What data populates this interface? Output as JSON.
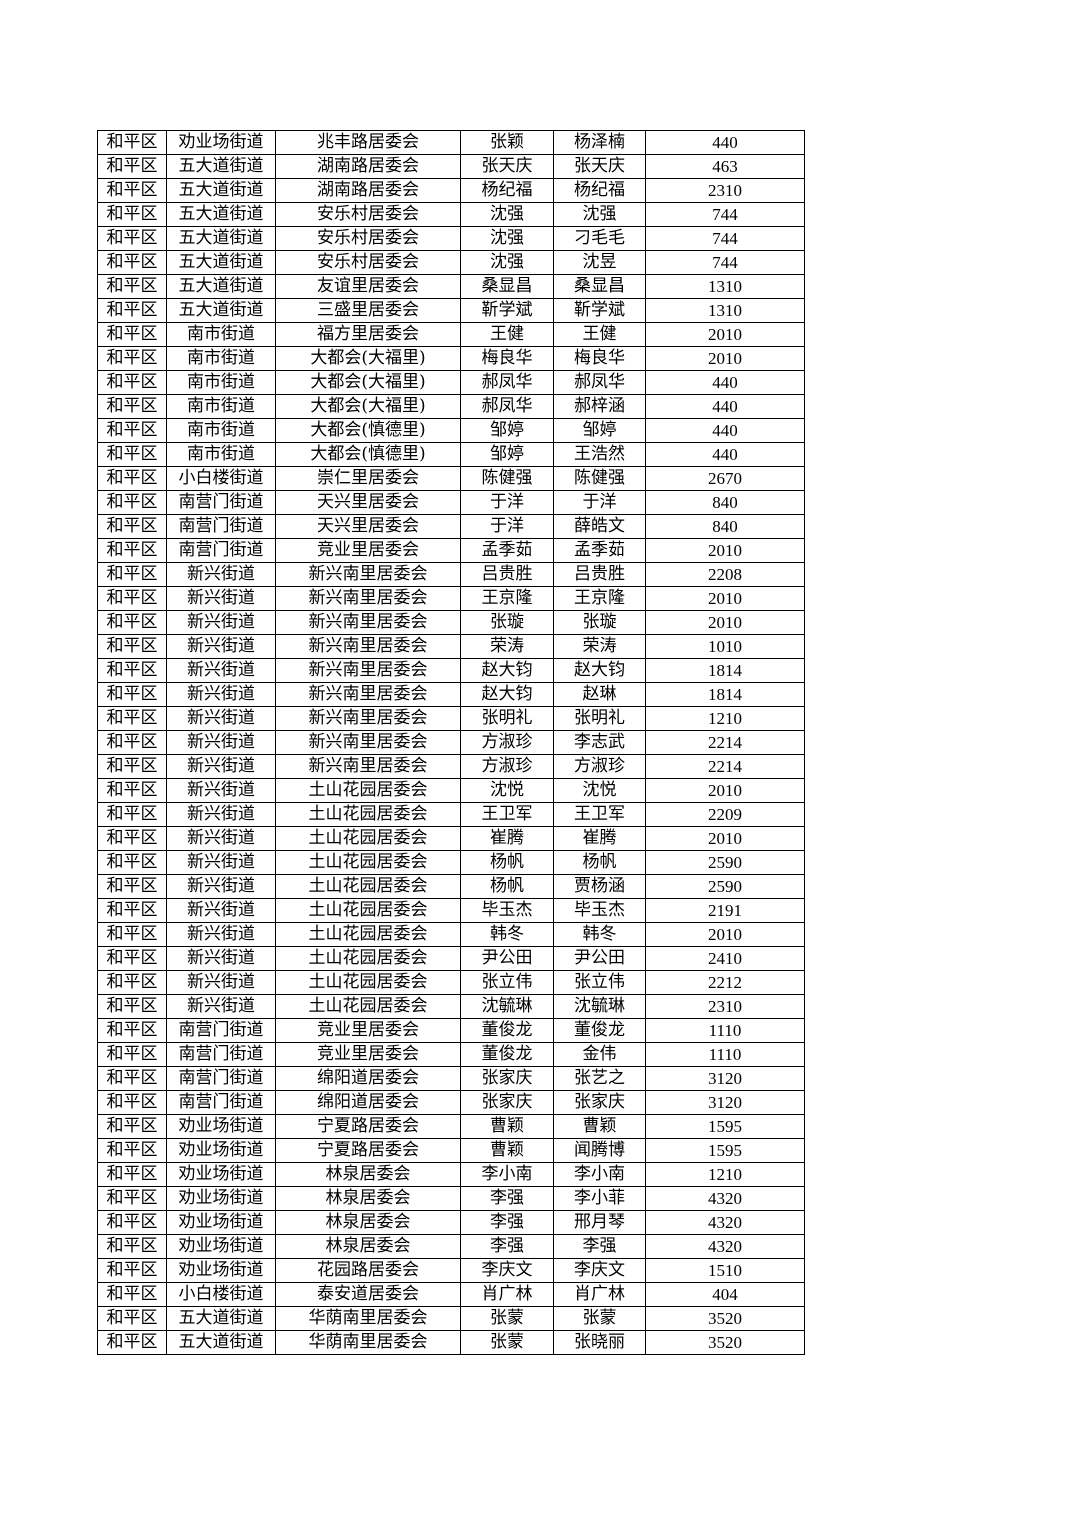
{
  "table": {
    "rows": [
      [
        "和平区",
        "劝业场街道",
        "兆丰路居委会",
        "张颖",
        "杨泽楠",
        "440"
      ],
      [
        "和平区",
        "五大道街道",
        "湖南路居委会",
        "张天庆",
        "张天庆",
        "463"
      ],
      [
        "和平区",
        "五大道街道",
        "湖南路居委会",
        "杨纪福",
        "杨纪福",
        "2310"
      ],
      [
        "和平区",
        "五大道街道",
        "安乐村居委会",
        "沈强",
        "沈强",
        "744"
      ],
      [
        "和平区",
        "五大道街道",
        "安乐村居委会",
        "沈强",
        "刁毛毛",
        "744"
      ],
      [
        "和平区",
        "五大道街道",
        "安乐村居委会",
        "沈强",
        "沈昱",
        "744"
      ],
      [
        "和平区",
        "五大道街道",
        "友谊里居委会",
        "桑显昌",
        "桑显昌",
        "1310"
      ],
      [
        "和平区",
        "五大道街道",
        "三盛里居委会",
        "靳学斌",
        "靳学斌",
        "1310"
      ],
      [
        "和平区",
        "南市街道",
        "福方里居委会",
        "王健",
        "王健",
        "2010"
      ],
      [
        "和平区",
        "南市街道",
        "大都会(大福里)",
        "梅良华",
        "梅良华",
        "2010"
      ],
      [
        "和平区",
        "南市街道",
        "大都会(大福里)",
        "郝凤华",
        "郝凤华",
        "440"
      ],
      [
        "和平区",
        "南市街道",
        "大都会(大福里)",
        "郝凤华",
        "郝梓涵",
        "440"
      ],
      [
        "和平区",
        "南市街道",
        "大都会(慎德里)",
        "邹婷",
        "邹婷",
        "440"
      ],
      [
        "和平区",
        "南市街道",
        "大都会(慎德里)",
        "邹婷",
        "王浩然",
        "440"
      ],
      [
        "和平区",
        "小白楼街道",
        "崇仁里居委会",
        "陈健强",
        "陈健强",
        "2670"
      ],
      [
        "和平区",
        "南营门街道",
        "天兴里居委会",
        "于洋",
        "于洋",
        "840"
      ],
      [
        "和平区",
        "南营门街道",
        "天兴里居委会",
        "于洋",
        "薛皓文",
        "840"
      ],
      [
        "和平区",
        "南营门街道",
        "竞业里居委会",
        "孟季茹",
        "孟季茹",
        "2010"
      ],
      [
        "和平区",
        "新兴街道",
        "新兴南里居委会",
        "吕贵胜",
        "吕贵胜",
        "2208"
      ],
      [
        "和平区",
        "新兴街道",
        "新兴南里居委会",
        "王京隆",
        "王京隆",
        "2010"
      ],
      [
        "和平区",
        "新兴街道",
        "新兴南里居委会",
        "张璇",
        "张璇",
        "2010"
      ],
      [
        "和平区",
        "新兴街道",
        "新兴南里居委会",
        "荣涛",
        "荣涛",
        "1010"
      ],
      [
        "和平区",
        "新兴街道",
        "新兴南里居委会",
        "赵大钧",
        "赵大钧",
        "1814"
      ],
      [
        "和平区",
        "新兴街道",
        "新兴南里居委会",
        "赵大钧",
        "赵琳",
        "1814"
      ],
      [
        "和平区",
        "新兴街道",
        "新兴南里居委会",
        "张明礼",
        "张明礼",
        "1210"
      ],
      [
        "和平区",
        "新兴街道",
        "新兴南里居委会",
        "方淑珍",
        "李志武",
        "2214"
      ],
      [
        "和平区",
        "新兴街道",
        "新兴南里居委会",
        "方淑珍",
        "方淑珍",
        "2214"
      ],
      [
        "和平区",
        "新兴街道",
        "土山花园居委会",
        "沈悦",
        "沈悦",
        "2010"
      ],
      [
        "和平区",
        "新兴街道",
        "土山花园居委会",
        "王卫军",
        "王卫军",
        "2209"
      ],
      [
        "和平区",
        "新兴街道",
        "土山花园居委会",
        "崔腾",
        "崔腾",
        "2010"
      ],
      [
        "和平区",
        "新兴街道",
        "土山花园居委会",
        "杨帆",
        "杨帆",
        "2590"
      ],
      [
        "和平区",
        "新兴街道",
        "土山花园居委会",
        "杨帆",
        "贾杨涵",
        "2590"
      ],
      [
        "和平区",
        "新兴街道",
        "土山花园居委会",
        "毕玉杰",
        "毕玉杰",
        "2191"
      ],
      [
        "和平区",
        "新兴街道",
        "土山花园居委会",
        "韩冬",
        "韩冬",
        "2010"
      ],
      [
        "和平区",
        "新兴街道",
        "土山花园居委会",
        "尹公田",
        "尹公田",
        "2410"
      ],
      [
        "和平区",
        "新兴街道",
        "土山花园居委会",
        "张立伟",
        "张立伟",
        "2212"
      ],
      [
        "和平区",
        "新兴街道",
        "土山花园居委会",
        "沈毓琳",
        "沈毓琳",
        "2310"
      ],
      [
        "和平区",
        "南营门街道",
        "竞业里居委会",
        "董俊龙",
        "董俊龙",
        "1110"
      ],
      [
        "和平区",
        "南营门街道",
        "竞业里居委会",
        "董俊龙",
        "金伟",
        "1110"
      ],
      [
        "和平区",
        "南营门街道",
        "绵阳道居委会",
        "张家庆",
        "张艺之",
        "3120"
      ],
      [
        "和平区",
        "南营门街道",
        "绵阳道居委会",
        "张家庆",
        "张家庆",
        "3120"
      ],
      [
        "和平区",
        "劝业场街道",
        "宁夏路居委会",
        "曹颖",
        "曹颖",
        "1595"
      ],
      [
        "和平区",
        "劝业场街道",
        "宁夏路居委会",
        "曹颖",
        "闻腾博",
        "1595"
      ],
      [
        "和平区",
        "劝业场街道",
        "林泉居委会",
        "李小南",
        "李小南",
        "1210"
      ],
      [
        "和平区",
        "劝业场街道",
        "林泉居委会",
        "李强",
        "李小菲",
        "4320"
      ],
      [
        "和平区",
        "劝业场街道",
        "林泉居委会",
        "李强",
        "邢月琴",
        "4320"
      ],
      [
        "和平区",
        "劝业场街道",
        "林泉居委会",
        "李强",
        "李强",
        "4320"
      ],
      [
        "和平区",
        "劝业场街道",
        "花园路居委会",
        "李庆文",
        "李庆文",
        "1510"
      ],
      [
        "和平区",
        "小白楼街道",
        "泰安道居委会",
        "肖广林",
        "肖广林",
        "404"
      ],
      [
        "和平区",
        "五大道街道",
        "华荫南里居委会",
        "张蒙",
        "张蒙",
        "3520"
      ],
      [
        "和平区",
        "五大道街道",
        "华荫南里居委会",
        "张蒙",
        "张晓丽",
        "3520"
      ]
    ]
  }
}
